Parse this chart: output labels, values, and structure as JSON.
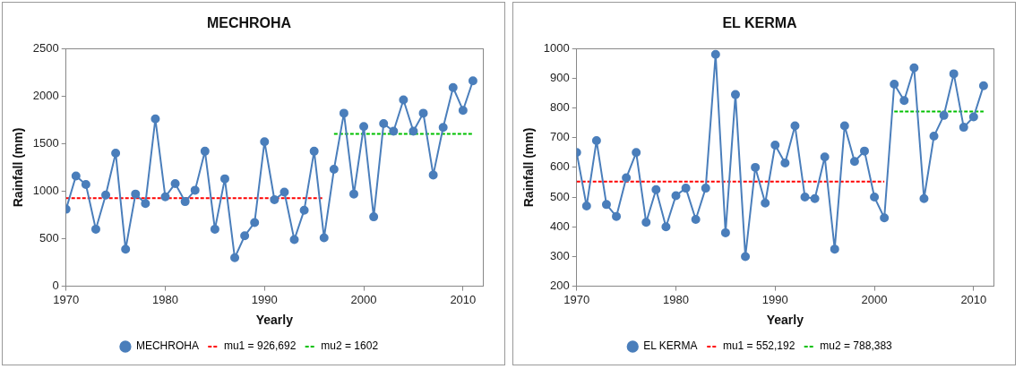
{
  "chart_data": [
    {
      "type": "line",
      "title": "MECHROHA",
      "xlabel": "Yearly",
      "ylabel": "Rainfall (mm)",
      "xlim": [
        1970,
        2012
      ],
      "xticks": [
        1970,
        1980,
        1990,
        2000,
        2010
      ],
      "ylim": [
        0,
        2500
      ],
      "yticks": [
        0,
        500,
        1000,
        1500,
        2000,
        2500
      ],
      "grid": false,
      "legend": "bottom",
      "series": [
        {
          "name": "MECHROHA",
          "color": "#4a7ebb",
          "marker": "circle",
          "line_style": "solid",
          "x": [
            1970,
            1971,
            1972,
            1973,
            1974,
            1975,
            1976,
            1977,
            1978,
            1979,
            1980,
            1981,
            1982,
            1983,
            1984,
            1985,
            1986,
            1987,
            1988,
            1989,
            1990,
            1991,
            1992,
            1993,
            1994,
            1995,
            1996,
            1997,
            1998,
            1999,
            2000,
            2001,
            2002,
            2003,
            2004,
            2005,
            2006,
            2007,
            2008,
            2009,
            2010,
            2011
          ],
          "values": [
            810,
            1160,
            1070,
            600,
            960,
            1400,
            390,
            970,
            870,
            1760,
            940,
            1080,
            890,
            1010,
            1420,
            600,
            1130,
            300,
            530,
            670,
            1520,
            910,
            990,
            490,
            800,
            1420,
            510,
            1230,
            1820,
            970,
            1680,
            730,
            1710,
            1630,
            1960,
            1630,
            1820,
            1170,
            1670,
            2090,
            1850,
            2160
          ]
        },
        {
          "name": "mu1 = 926,692",
          "color": "#ff0000",
          "marker": "none",
          "line_style": "dashed",
          "x": [
            1970,
            1996
          ],
          "values": [
            926.692,
            926.692
          ]
        },
        {
          "name": "mu2 = 1602",
          "color": "#00c000",
          "marker": "none",
          "line_style": "dashed",
          "x": [
            1997,
            2011
          ],
          "values": [
            1602,
            1602
          ]
        }
      ]
    },
    {
      "type": "line",
      "title": "EL KERMA",
      "xlabel": "Yearly",
      "ylabel": "Rainfall (mm)",
      "xlim": [
        1970,
        2012
      ],
      "xticks": [
        1970,
        1980,
        1990,
        2000,
        2010
      ],
      "ylim": [
        200,
        1000
      ],
      "yticks": [
        200,
        300,
        400,
        500,
        600,
        700,
        800,
        900,
        1000
      ],
      "grid": false,
      "legend": "bottom",
      "series": [
        {
          "name": "EL KERMA",
          "color": "#4a7ebb",
          "marker": "circle",
          "line_style": "solid",
          "x": [
            1970,
            1971,
            1972,
            1973,
            1974,
            1975,
            1976,
            1977,
            1978,
            1979,
            1980,
            1981,
            1982,
            1983,
            1984,
            1985,
            1986,
            1987,
            1988,
            1989,
            1990,
            1991,
            1992,
            1993,
            1994,
            1995,
            1996,
            1997,
            1998,
            1999,
            2000,
            2001,
            2002,
            2003,
            2004,
            2005,
            2006,
            2007,
            2008,
            2009,
            2010,
            2011
          ],
          "values": [
            650,
            470,
            690,
            475,
            435,
            565,
            650,
            415,
            525,
            400,
            505,
            530,
            425,
            530,
            980,
            380,
            845,
            300,
            600,
            480,
            675,
            615,
            740,
            500,
            495,
            635,
            325,
            740,
            620,
            655,
            500,
            430,
            880,
            825,
            935,
            495,
            705,
            775,
            915,
            735,
            770,
            875
          ]
        },
        {
          "name": "mu1 = 552,192",
          "color": "#ff0000",
          "marker": "none",
          "line_style": "dashed",
          "x": [
            1970,
            2001
          ],
          "values": [
            552.192,
            552.192
          ]
        },
        {
          "name": "mu2 = 788,383",
          "color": "#00c000",
          "marker": "none",
          "line_style": "dashed",
          "x": [
            2002,
            2011
          ],
          "values": [
            788.383,
            788.383
          ]
        }
      ]
    }
  ]
}
